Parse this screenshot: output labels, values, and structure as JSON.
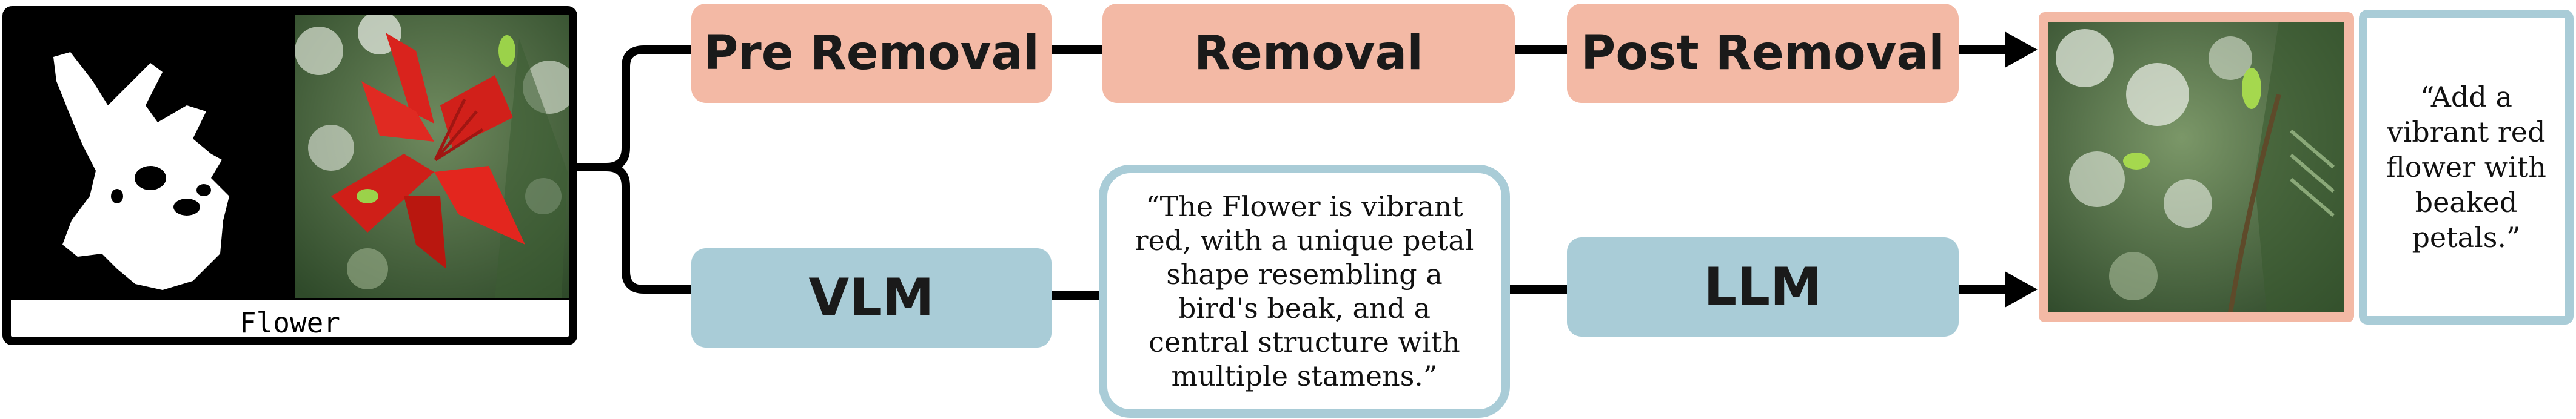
{
  "input": {
    "caption": "Flower"
  },
  "top_pipeline": {
    "steps": [
      "Pre Removal",
      "Removal",
      "Post Removal"
    ]
  },
  "bottom_pipeline": {
    "vlm_label": "VLM",
    "vlm_quote": "“The Flower is vibrant red, with a unique petal shape resembling a bird's beak, and a central structure with multiple stamens.”",
    "llm_label": "LLM"
  },
  "output": {
    "prompt": "“Add a vibrant red flower with beaked petals.”"
  },
  "colors": {
    "removal_boxes": "#f3b9a5",
    "language_boxes": "#a9ccd7",
    "connectors": "#000000"
  }
}
